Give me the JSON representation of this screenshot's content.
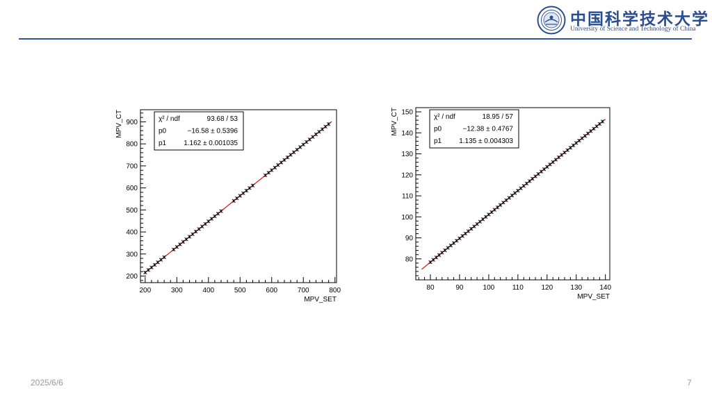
{
  "logo": {
    "cn_name": "中国科学技术大学",
    "en_name": "University of Science and Technology of China",
    "emblem_icon": "ustc-emblem-icon"
  },
  "footer": {
    "date": "2025/6/6",
    "page_number": "7"
  },
  "colors": {
    "header_rule": "#2e5597",
    "fit_line": "#e02020",
    "markers": "#000000"
  },
  "chart_data": [
    {
      "type": "scatter",
      "xlabel": "MPV_SET",
      "ylabel": "MPV_CT",
      "xlim": [
        185,
        805
      ],
      "ylim": [
        170,
        955
      ],
      "xticks": [
        200,
        300,
        400,
        500,
        600,
        700,
        800
      ],
      "yticks": [
        200,
        300,
        400,
        500,
        600,
        700,
        800,
        900
      ],
      "x_range": [
        200,
        780
      ],
      "x_step": 10,
      "gaps": [
        [
          270,
          280
        ],
        [
          450,
          470
        ],
        [
          550,
          570
        ]
      ],
      "fit": {
        "p0": -16.58,
        "p1": 1.162,
        "x_range": [
          200,
          790
        ]
      },
      "stats": [
        {
          "label": "χ² / ndf",
          "value": "93.68 / 53"
        },
        {
          "label": "p0",
          "value": "−16.58 ± 0.5396"
        },
        {
          "label": "p1",
          "value": "1.162 ± 0.001035"
        }
      ]
    },
    {
      "type": "scatter",
      "xlabel": "MPV_SET",
      "ylabel": "MPV_CT",
      "xlim": [
        75,
        141.5
      ],
      "ylim": [
        70,
        152
      ],
      "xticks": [
        80,
        90,
        100,
        110,
        120,
        130,
        140
      ],
      "yticks": [
        80,
        90,
        100,
        110,
        120,
        130,
        140,
        150
      ],
      "x_range": [
        80,
        139
      ],
      "x_step": 1,
      "gaps": [],
      "fit": {
        "p0": -12.38,
        "p1": 1.135,
        "x_range": [
          77,
          140
        ]
      },
      "stats": [
        {
          "label": "χ² / ndf",
          "value": "18.95 / 57"
        },
        {
          "label": "p0",
          "value": "−12.38 ± 0.4767"
        },
        {
          "label": "p1",
          "value": "1.135 ± 0.004303"
        }
      ]
    }
  ]
}
